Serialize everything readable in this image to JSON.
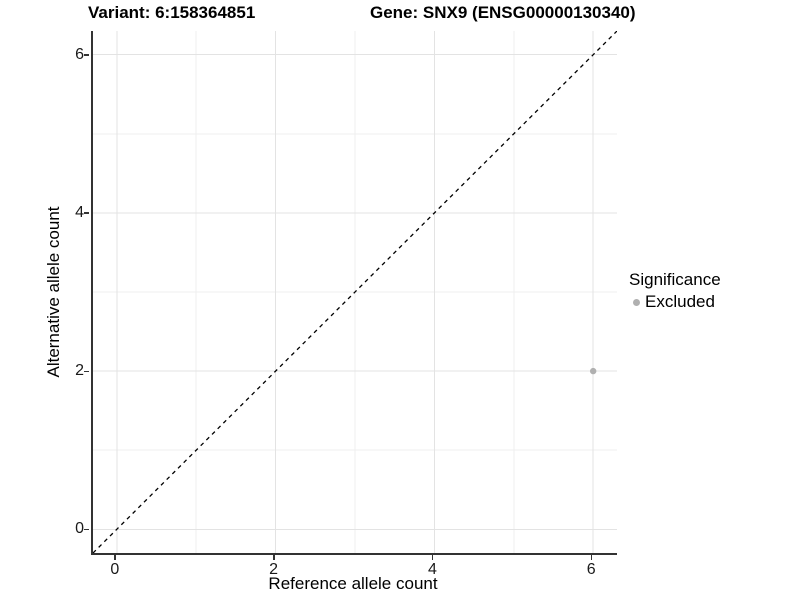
{
  "figure": {
    "title_variant": "Variant: 6:158364851",
    "title_gene": "Gene: SNX9 (ENSG00000130340)"
  },
  "chart_data": {
    "type": "scatter",
    "title_left": "Variant: 6:158364851",
    "title_right": "Gene: SNX9 (ENSG00000130340)",
    "xlabel": "Reference allele count",
    "ylabel": "Alternative allele count",
    "xlim": [
      -0.3,
      6.3
    ],
    "ylim": [
      -0.3,
      6.3
    ],
    "x_ticks": [
      0,
      2,
      4,
      6
    ],
    "y_ticks": [
      0,
      2,
      4,
      6
    ],
    "x_minor_ticks": [
      1,
      3,
      5
    ],
    "y_minor_ticks": [
      1,
      3,
      5
    ],
    "grid": "major and minor, light grey on white",
    "reference_line": {
      "kind": "identity y=x",
      "style": "dashed",
      "x1": -0.3,
      "y1": -0.3,
      "x2": 6.3,
      "y2": 6.3,
      "color": "#000000"
    },
    "series": [
      {
        "name": "Excluded",
        "color": "#b0b0b0",
        "points": [
          [
            6,
            2
          ]
        ]
      }
    ],
    "legend": {
      "position": "right",
      "title": "Significance",
      "entries": [
        {
          "label": "Excluded",
          "color": "#b0b0b0"
        }
      ]
    }
  },
  "colors": {
    "background": "#ffffff",
    "axis_line": "#333333",
    "text": "#000000",
    "tick_label": "#1a1a1a",
    "grid_major": "#e3e3e3",
    "grid_minor": "#efefef",
    "point": "#b0b0b0"
  }
}
